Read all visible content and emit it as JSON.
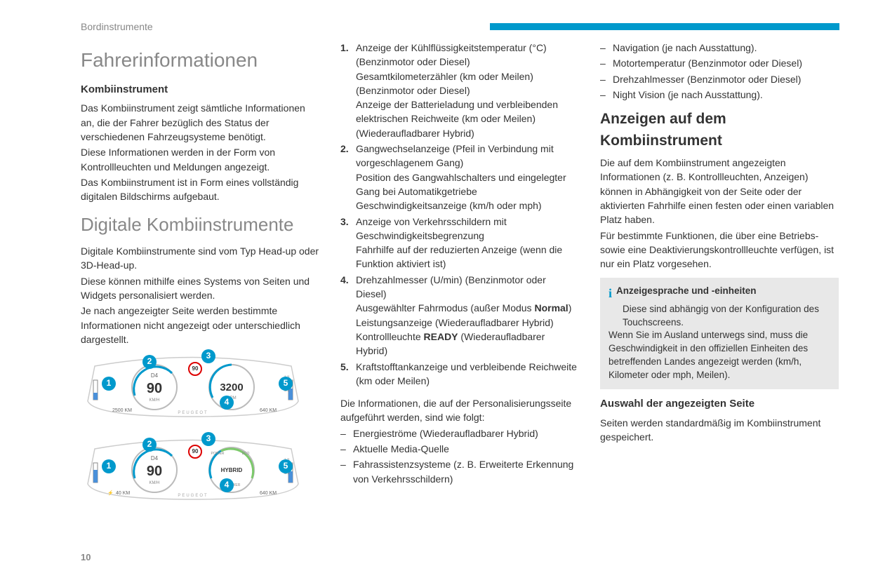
{
  "header": {
    "section_label": "Bordinstrumente",
    "bar_color": "#0099cc"
  },
  "page_number": "10",
  "col1": {
    "h1": "Fahrerinformationen",
    "sub1_title": "Kombiinstrument",
    "sub1_p1": "Das Kombiinstrument zeigt sämtliche Informationen an, die der Fahrer bezüglich des Status der verschiedenen Fahrzeugsysteme benötigt.",
    "sub1_p2": "Diese Informationen werden in der Form von Kontrollleuchten und Meldungen angezeigt.",
    "sub1_p3": "Das Kombiinstrument ist in Form eines vollständig digitalen Bildschirms aufgebaut.",
    "h2": "Digitale Kombiinstrumente",
    "p4": "Digitale Kombiinstrumente sind vom Typ Head-up oder 3D-Head-up.",
    "p5": "Diese können mithilfe eines Systems von Seiten und Widgets personalisiert werden.",
    "p6": "Je nach angezeigter Seite werden bestimmte Informationen nicht angezeigt oder unterschiedlich dargestellt."
  },
  "cluster": {
    "callout1": "1",
    "callout2": "2",
    "callout3": "3",
    "callout4": "4",
    "callout5": "5",
    "sign": "90",
    "gauge1": {
      "speed": "90",
      "unit": "KM/H",
      "gear": "D4",
      "odo": "2500 KM"
    },
    "gauge2a": {
      "rpm": "3200",
      "unit": "RPM",
      "range": "640 KM"
    },
    "gauge2b": {
      "mode": "HYBRID",
      "power": "% POWER",
      "eco": "ECO",
      "pwr": "POWER",
      "range": "640 KM",
      "fuel_range": "40 KM"
    },
    "brand": "PEUGEOT",
    "colors": {
      "accent": "#0099cc",
      "ring": "#bbb",
      "text": "#333",
      "fuel": "#4a90d9"
    }
  },
  "col2": {
    "items": [
      {
        "n": "1.",
        "lines": [
          "Anzeige der Kühlflüssigkeitstemperatur (°C) (Benzinmotor oder Diesel)",
          "Gesamtkilometerzähler (km oder Meilen) (Benzinmotor oder Diesel)",
          "Anzeige der Batterieladung und verbleibenden elektrischen Reichweite (km oder Meilen) (Wiederaufladbarer Hybrid)"
        ]
      },
      {
        "n": "2.",
        "lines": [
          "Gangwechselanzeige (Pfeil in Verbindung mit vorgeschlagenem Gang)",
          "Position des Gangwahlschalters und eingelegter Gang bei Automatikgetriebe",
          "Geschwindigkeitsanzeige (km/h oder mph)"
        ]
      },
      {
        "n": "3.",
        "lines": [
          "Anzeige von Verkehrsschildern mit Geschwindigkeitsbegrenzung",
          "Fahrhilfe auf der reduzierten Anzeige (wenn die Funktion aktiviert ist)"
        ]
      },
      {
        "n": "4.",
        "lines_rich": [
          "Drehzahlmesser (U/min) (Benzinmotor oder Diesel)",
          [
            "Ausgewählter Fahrmodus (außer Modus ",
            "Normal",
            ")"
          ],
          "Leistungsanzeige (Wiederaufladbarer Hybrid)",
          [
            "Kontrollleuchte ",
            "READY",
            " (Wiederaufladbarer Hybrid)"
          ]
        ]
      },
      {
        "n": "5.",
        "lines": [
          "Kraftstofftankanzeige und verbleibende Reichweite (km oder Meilen)"
        ]
      }
    ],
    "after_p": "Die Informationen, die auf der Personalisierungsseite aufgeführt werden, sind wie folgt:",
    "dashes": [
      "Energieströme (Wiederaufladbarer Hybrid)",
      "Aktuelle Media-Quelle",
      "Fahrassistenzsysteme (z. B. Erweiterte Erkennung von Verkehrsschildern)"
    ]
  },
  "col3": {
    "top_dashes": [
      "Navigation (je nach Ausstattung).",
      "Motortemperatur (Benzinmotor oder Diesel)",
      "Drehzahlmesser (Benzinmotor oder Diesel)",
      "Night Vision (je nach Ausstattung)."
    ],
    "h3_big": "Anzeigen auf dem Kombiinstrument",
    "p1": "Die auf dem Kombiinstrument angezeigten Informationen (z. B. Kontrollleuchten, Anzeigen) können in Abhängigkeit von der Seite oder der aktivierten Fahrhilfe einen festen oder einen variablen Platz haben.",
    "p2": "Für bestimmte Funktionen, die über eine Betriebs- sowie eine Deaktivierungskontrollleuchte verfügen, ist nur ein Platz vorgesehen.",
    "note": {
      "title": "Anzeigesprache und -einheiten",
      "l1": "Diese sind abhängig von der Konfiguration des Touchscreens.",
      "l2": "Wenn Sie im Ausland unterwegs sind, muss die Geschwindigkeit in den offiziellen Einheiten des betreffenden Landes angezeigt werden (km/h, Kilometer oder mph, Meilen)."
    },
    "h3b": "Auswahl der angezeigten Seite",
    "p3": "Seiten werden standardmäßig im Kombiinstrument gespeichert."
  }
}
